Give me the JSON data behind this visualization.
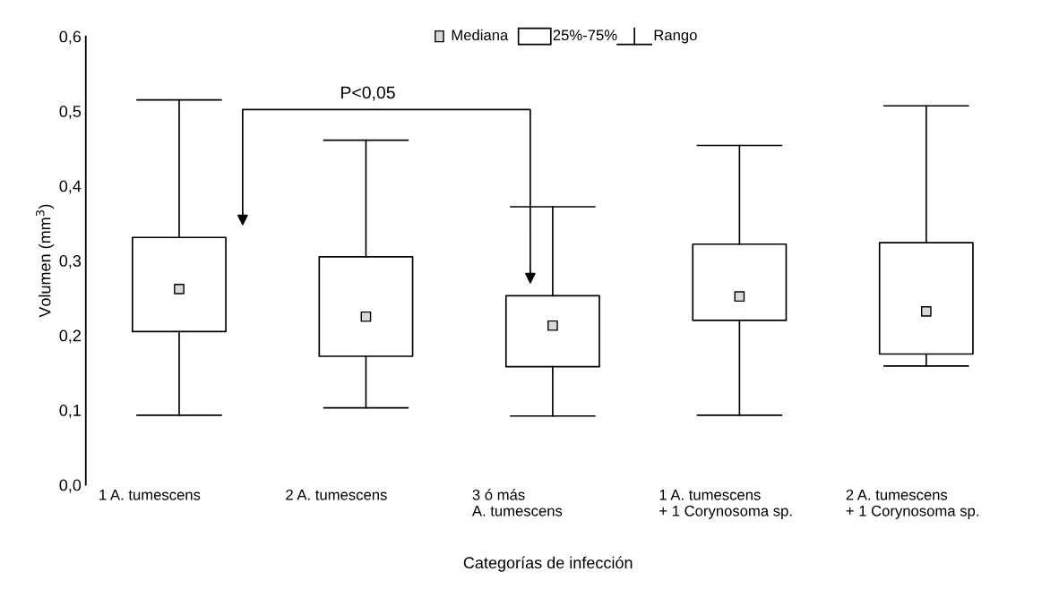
{
  "chart_data": {
    "type": "box",
    "ylabel": "Volumen (mm$^{3}$)",
    "xlabel": "Categorías de infección",
    "categories": [
      "1 A. tumescens",
      "2 A. tumescens",
      "3 ó más\nA. tumescens",
      "1 A. tumescens\n+ 1 Corynosoma sp.",
      "2 A. tumescens\n+ 1 Corynosoma sp."
    ],
    "boxes": [
      {
        "low": 0.093,
        "q1": 0.205,
        "median": 0.262,
        "q3": 0.331,
        "high": 0.515
      },
      {
        "low": 0.103,
        "q1": 0.172,
        "median": 0.225,
        "q3": 0.305,
        "high": 0.461
      },
      {
        "low": 0.092,
        "q1": 0.158,
        "median": 0.213,
        "q3": 0.253,
        "high": 0.372
      },
      {
        "low": 0.093,
        "q1": 0.22,
        "median": 0.252,
        "q3": 0.322,
        "high": 0.454
      },
      {
        "low": 0.159,
        "q1": 0.175,
        "median": 0.232,
        "q3": 0.324,
        "high": 0.507
      }
    ],
    "ylim": [
      0,
      0.6
    ],
    "yticks": [
      {
        "value": 0,
        "label": "0,0"
      },
      {
        "value": 0.1,
        "label": "0,1"
      },
      {
        "value": 0.2,
        "label": "0,2"
      },
      {
        "value": 0.3,
        "label": "0,3"
      },
      {
        "value": 0.4,
        "label": "0,4"
      },
      {
        "value": 0.5,
        "label": "0,5"
      },
      {
        "value": 0.6,
        "label": "0,6"
      }
    ],
    "annotations": [
      "P<0,05",
      "Mediana",
      "25%-75%",
      "Rango"
    ],
    "grid": false
  }
}
